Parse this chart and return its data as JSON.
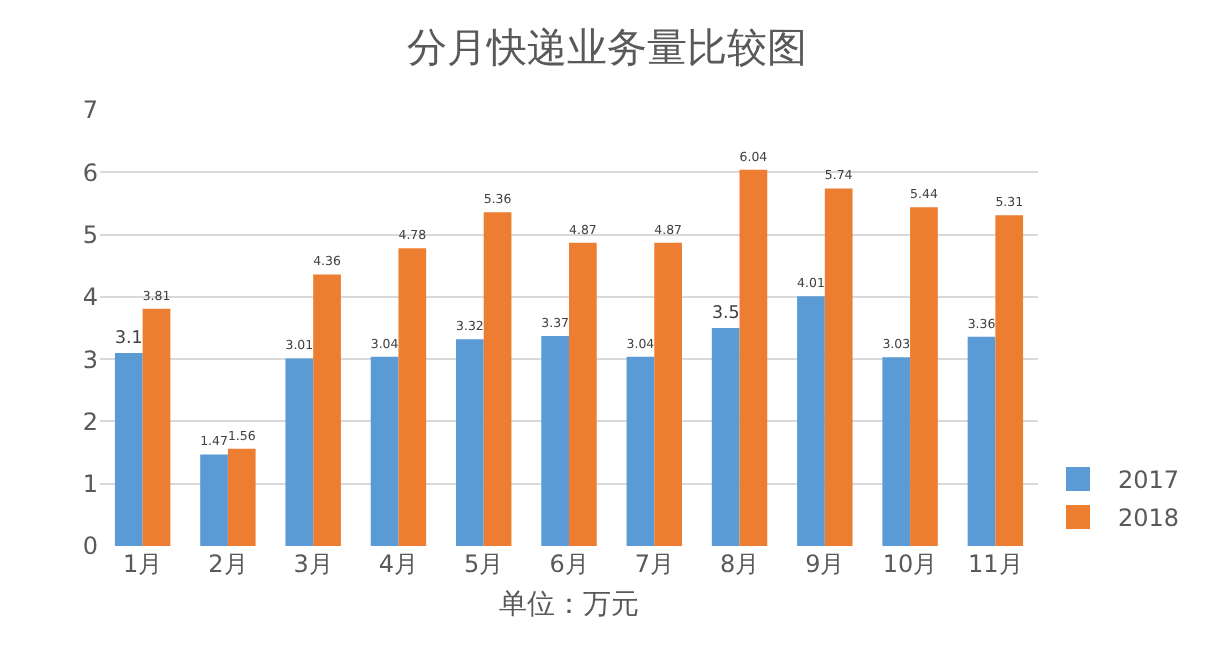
{
  "chart_data": {
    "type": "bar",
    "title": "分月快递业务量比较图",
    "xlabel": "单位：万元",
    "categories": [
      "1月",
      "2月",
      "3月",
      "4月",
      "5月",
      "6月",
      "7月",
      "8月",
      "9月",
      "10月",
      "11月"
    ],
    "series": [
      {
        "name": "2017",
        "color": "#5b9bd5",
        "values": [
          3.1,
          1.47,
          3.01,
          3.04,
          3.32,
          3.37,
          3.04,
          3.5,
          4.01,
          3.03,
          3.36
        ]
      },
      {
        "name": "2018",
        "color": "#ed7d31",
        "values": [
          3.81,
          1.56,
          4.36,
          4.78,
          5.36,
          4.87,
          4.87,
          6.04,
          5.74,
          5.44,
          5.31
        ]
      }
    ],
    "ylim": [
      0,
      7
    ],
    "yticks": [
      0,
      1,
      2,
      3,
      4,
      5,
      6,
      7
    ],
    "grid": "y",
    "legend": "bottom right",
    "data_labels": true
  }
}
